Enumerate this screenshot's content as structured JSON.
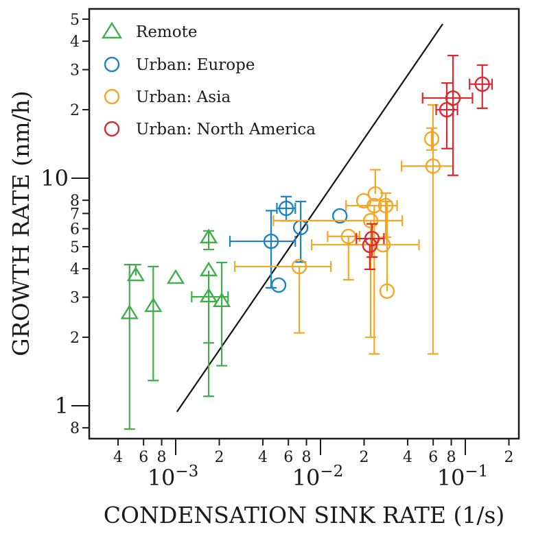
{
  "chart_data": {
    "type": "scatter",
    "title": "",
    "xlabel": "CONDENSATION SINK RATE (1/s)",
    "ylabel": "GROWTH RATE (nm/h)",
    "xscale": "log",
    "yscale": "log",
    "xlim": [
      0.00025,
      0.23
    ],
    "ylim": [
      0.72,
      55
    ],
    "grid": false,
    "legend_position": "top-left",
    "x_ticks": {
      "minor": [
        {
          "value": 0.0004,
          "label": "4"
        },
        {
          "value": 0.0006,
          "label": "6"
        },
        {
          "value": 0.0008,
          "label": "8"
        },
        {
          "value": 0.002,
          "label": "2"
        },
        {
          "value": 0.004,
          "label": "4"
        },
        {
          "value": 0.006,
          "label": "6"
        },
        {
          "value": 0.008,
          "label": "8"
        },
        {
          "value": 0.02,
          "label": "2"
        },
        {
          "value": 0.04,
          "label": "4"
        },
        {
          "value": 0.06,
          "label": "6"
        },
        {
          "value": 0.08,
          "label": "8"
        },
        {
          "value": 0.2,
          "label": "2"
        }
      ],
      "major": [
        {
          "value": 0.001,
          "base": "10",
          "exp": "−3"
        },
        {
          "value": 0.01,
          "base": "10",
          "exp": "−2"
        },
        {
          "value": 0.1,
          "base": "10",
          "exp": "−1"
        }
      ]
    },
    "y_ticks": {
      "minor": [
        {
          "value": 50,
          "label": "5"
        },
        {
          "value": 40,
          "label": "4"
        },
        {
          "value": 30,
          "label": "3"
        },
        {
          "value": 20,
          "label": "2"
        },
        {
          "value": 8,
          "label": "8"
        },
        {
          "value": 7,
          "label": "7"
        },
        {
          "value": 6,
          "label": "6"
        },
        {
          "value": 5,
          "label": "5"
        },
        {
          "value": 4,
          "label": "4"
        },
        {
          "value": 3,
          "label": "3"
        },
        {
          "value": 2,
          "label": "2"
        },
        {
          "value": 0.8,
          "label": "8"
        }
      ],
      "major": [
        {
          "value": 10,
          "label": "10"
        },
        {
          "value": 1,
          "label": "1"
        }
      ]
    },
    "reference_line": {
      "x": [
        0.00102,
        0.0698
      ],
      "y": [
        0.94,
        47.6
      ],
      "color": "#111111"
    },
    "series": [
      {
        "name": "Remote",
        "marker": "triangle",
        "color": "#3fae49",
        "points": [
          {
            "x": 0.00048,
            "y": 2.54,
            "yerr": [
              0.79,
              4.17
            ]
          },
          {
            "x": 0.00053,
            "y": 3.73,
            "yerr": [
              3.73,
              4.17
            ]
          },
          {
            "x": 0.0007,
            "y": 2.73,
            "yerr": [
              1.29,
              4.09
            ]
          },
          {
            "x": 0.001,
            "y": 3.63
          },
          {
            "x": 0.00169,
            "y": 5.47,
            "yerr": [
              4.86,
              5.87
            ]
          },
          {
            "x": 0.00169,
            "y": 3.92,
            "yerr": [
              1.89,
              3.92
            ]
          },
          {
            "x": 0.00169,
            "y": 3.01,
            "yerr": [
              1.1,
              3.01
            ],
            "xerr": [
              0.00129,
              0.0023
            ]
          },
          {
            "x": 0.00208,
            "y": 2.87,
            "yerr": [
              1.5,
              4.26
            ]
          }
        ]
      },
      {
        "name": "Urban: Europe",
        "marker": "circle",
        "color": "#1b82c5",
        "points": [
          {
            "x": 0.0058,
            "y": 7.37,
            "yerr": [
              6.5,
              8.3
            ],
            "xerr": [
              0.005,
              0.0067
            ]
          },
          {
            "x": 0.0073,
            "y": 6.07,
            "yerr": [
              4.28,
              7.9
            ]
          },
          {
            "x": 0.00456,
            "y": 5.28,
            "yerr": [
              3.3,
              7.2
            ],
            "xerr": [
              0.00237,
              0.0067
            ]
          },
          {
            "x": 0.00514,
            "y": 3.39
          },
          {
            "x": 0.0136,
            "y": 6.83
          }
        ]
      },
      {
        "name": "Urban: Asia",
        "marker": "circle",
        "color": "#f5a623",
        "points": [
          {
            "x": 0.00713,
            "y": 4.09,
            "yerr": [
              2.09,
              4.09
            ],
            "xerr": [
              0.00256,
              0.0118
            ]
          },
          {
            "x": 0.0156,
            "y": 5.55,
            "yerr": [
              3.58,
              5.55
            ],
            "xerr": [
              0.0112,
              0.0186
            ]
          },
          {
            "x": 0.0199,
            "y": 7.96
          },
          {
            "x": 0.0239,
            "y": 8.53,
            "yerr": [
              8.53,
              10.9
            ]
          },
          {
            "x": 0.0235,
            "y": 7.58,
            "yerr": [
              1.69,
              7.58
            ],
            "xerr": [
              0.015,
              0.0338
            ]
          },
          {
            "x": 0.0282,
            "y": 7.58,
            "yerr": [
              5.5,
              8.6
            ]
          },
          {
            "x": 0.0222,
            "y": 6.51,
            "yerr": [
              2.0,
              6.51
            ],
            "xerr": [
              0.00473,
              0.0367
            ]
          },
          {
            "x": 0.027,
            "y": 5.1,
            "xerr": [
              0.00869,
              0.0479
            ]
          },
          {
            "x": 0.0288,
            "y": 3.19,
            "yerr": [
              3.19,
              7.9
            ]
          },
          {
            "x": 0.0586,
            "y": 14.9,
            "yerr": [
              13.3,
              16.6
            ]
          },
          {
            "x": 0.0598,
            "y": 11.3,
            "yerr": [
              1.69,
              21.0
            ],
            "xerr": [
              0.0363,
              0.0822
            ]
          }
        ]
      },
      {
        "name": "Urban: North America",
        "marker": "circle",
        "color": "#e0262f",
        "points": [
          {
            "x": 0.0227,
            "y": 5.43,
            "yerr": [
              4.5,
              6.3
            ],
            "xerr": [
              0.0177,
              0.0274
            ]
          },
          {
            "x": 0.0219,
            "y": 5.07,
            "yerr": [
              3.98,
              5.07
            ]
          },
          {
            "x": 0.131,
            "y": 25.9,
            "yerr": [
              20.3,
              31.4
            ],
            "xerr": [
              0.107,
              0.153
            ]
          },
          {
            "x": 0.0822,
            "y": 22.5,
            "yerr": [
              10.3,
              34.6
            ],
            "xerr": [
              0.0507,
              0.112
            ]
          },
          {
            "x": 0.0745,
            "y": 20.0,
            "yerr": [
              13.5,
              26.2
            ],
            "xerr": [
              0.0629,
              0.0883
            ]
          }
        ]
      }
    ]
  }
}
